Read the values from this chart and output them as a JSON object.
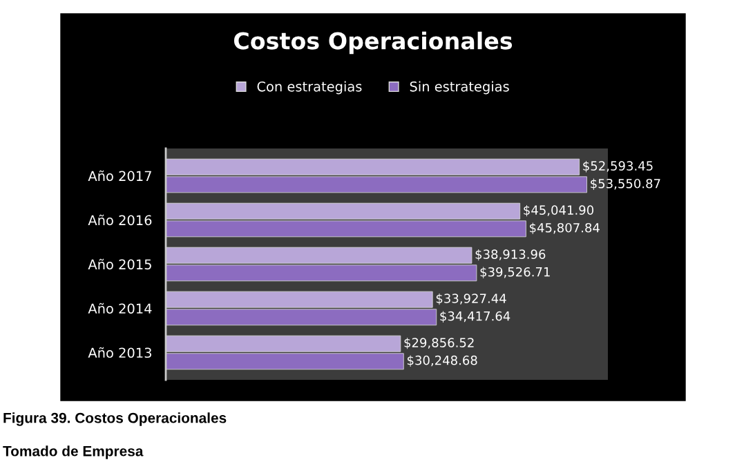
{
  "chart_data": {
    "type": "bar",
    "orientation": "horizontal",
    "title": "Costos Operacionales",
    "categories": [
      "Año 2017",
      "Año 2016",
      "Año 2015",
      "Año 2014",
      "Año 2013"
    ],
    "series": [
      {
        "name": "Con estrategias",
        "color": "#b8a6d8",
        "values": [
          52593.45,
          45041.9,
          38913.96,
          33927.44,
          29856.52
        ],
        "value_labels": [
          "$52,593.45",
          "$45,041.90",
          "$38,913.96",
          "$33,927.44",
          "$29,856.52"
        ]
      },
      {
        "name": "Sin estrategias",
        "color": "#8c6cc0",
        "values": [
          53550.87,
          45807.84,
          39526.71,
          34417.64,
          30248.68
        ],
        "value_labels": [
          "$53,550.87",
          "$45,807.84",
          "$39,526.71",
          "$34,417.64",
          "$30,248.68"
        ]
      }
    ],
    "legend": "top",
    "grid": false,
    "tick_labels": "y",
    "annotations": [
      "Figura 39. Costos Operacionales",
      "Tomado de Empresa"
    ]
  }
}
